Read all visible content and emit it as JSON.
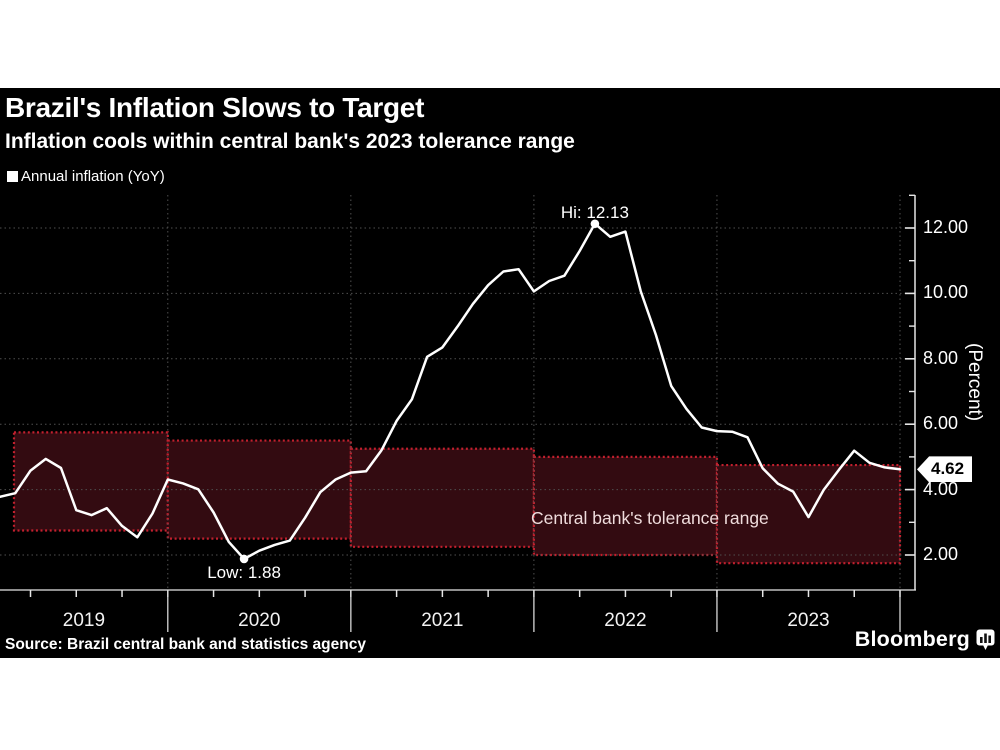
{
  "header": {
    "title": "Brazil's Inflation Slows to Target",
    "subtitle": "Inflation cools within central bank's 2023 tolerance range",
    "legend_label": "Annual inflation (YoY)"
  },
  "chart_data": {
    "type": "line",
    "title": "Brazil's Inflation Slows to Target",
    "legend_position": "top-left",
    "grid": true,
    "years": [
      "2019",
      "2020",
      "2021",
      "2022",
      "2023"
    ],
    "series": [
      {
        "name": "Annual inflation (YoY)",
        "cadence": "monthly",
        "start": "2019-01",
        "values": [
          3.78,
          3.89,
          4.58,
          4.94,
          4.66,
          3.37,
          3.22,
          3.43,
          2.89,
          2.54,
          3.27,
          4.31,
          4.19,
          4.01,
          3.3,
          2.4,
          1.88,
          2.13,
          2.31,
          2.44,
          3.14,
          3.92,
          4.31,
          4.52,
          4.56,
          5.2,
          6.1,
          6.76,
          8.06,
          8.35,
          8.99,
          9.68,
          10.25,
          10.67,
          10.74,
          10.06,
          10.38,
          10.54,
          11.3,
          12.13,
          11.73,
          11.89,
          10.07,
          8.73,
          7.17,
          6.47,
          5.9,
          5.79,
          5.77,
          5.6,
          4.65,
          4.18,
          3.94,
          3.16,
          3.99,
          4.61,
          5.19,
          4.82,
          4.68,
          4.62
        ]
      }
    ],
    "y_axis": {
      "label": "(Percent)",
      "ticks": [
        "2.00",
        "4.00",
        "6.00",
        "8.00",
        "10.00",
        "12.00"
      ],
      "minor_ticks": [
        3,
        5,
        7,
        9,
        11,
        13
      ]
    },
    "ylim": [
      0.93,
      13.05
    ],
    "tolerance_bands": [
      {
        "year": "2019",
        "low": 2.75,
        "high": 5.75
      },
      {
        "year": "2020",
        "low": 2.5,
        "high": 5.5
      },
      {
        "year": "2021",
        "low": 2.25,
        "high": 5.25
      },
      {
        "year": "2022",
        "low": 2.0,
        "high": 5.0
      },
      {
        "year": "2023",
        "low": 1.75,
        "high": 4.75
      }
    ],
    "annotations": {
      "high": {
        "label": "Hi: 12.13",
        "value": 12.13,
        "month_index": 39
      },
      "low": {
        "label": "Low: 1.88",
        "value": 1.88,
        "month_index": 16
      },
      "band_label": "Central bank's tolerance range",
      "last_value": {
        "label": "4.62",
        "value": 4.62
      }
    },
    "colors": {
      "background": "#000000",
      "line": "#ffffff",
      "band_fill": "#330b11",
      "band_border": "#c2202e",
      "grid": "#4f4f4f",
      "axis": "#e6e6e6",
      "year_divider": "#d8d8d8",
      "badge_bg": "#ffffff",
      "badge_text": "#000000"
    }
  },
  "footer": {
    "source": "Source: Brazil central bank and statistics agency",
    "brand": "Bloomberg"
  }
}
